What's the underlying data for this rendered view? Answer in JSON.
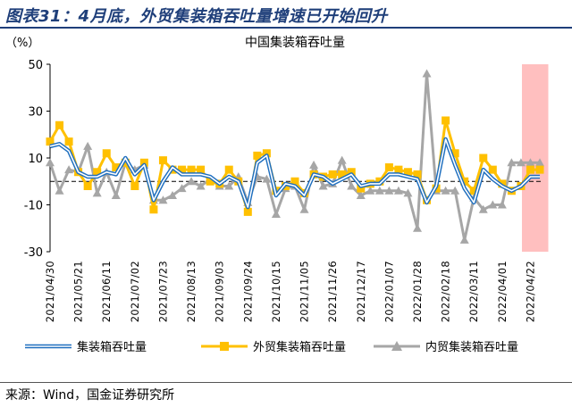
{
  "figure_title": "图表31：4月底，外贸集装箱吞吐量增速已开始回升",
  "source_note": "来源：Wind，国金证券研究所",
  "colors": {
    "total": "#1f6fbf",
    "foreign": "#ffc000",
    "domestic": "#a6a6a6",
    "highlight": "#ffaaaa",
    "title": "#1f3f7a"
  },
  "chart_data": {
    "type": "line",
    "title": "中国集装箱吞吐量",
    "unit_label": "（%）",
    "ylim": [
      -30,
      50
    ],
    "yticks": [
      -30,
      -10,
      10,
      30,
      50
    ],
    "grid": false,
    "zero_line": "dashed",
    "legend_position": "bottom",
    "highlight_region": {
      "from_index": 51,
      "to_index": 52
    },
    "x_tick_labels": [
      {
        "index": 0,
        "label": "2021/04/30"
      },
      {
        "index": 3,
        "label": "2021/05/21"
      },
      {
        "index": 6,
        "label": "2021/06/11"
      },
      {
        "index": 9,
        "label": "2021/07/02"
      },
      {
        "index": 12,
        "label": "2021/07/23"
      },
      {
        "index": 15,
        "label": "2021/08/13"
      },
      {
        "index": 18,
        "label": "2021/09/03"
      },
      {
        "index": 21,
        "label": "2021/09/24"
      },
      {
        "index": 24,
        "label": "2021/10/15"
      },
      {
        "index": 27,
        "label": "2021/11/05"
      },
      {
        "index": 30,
        "label": "2021/11/26"
      },
      {
        "index": 33,
        "label": "2021/12/17"
      },
      {
        "index": 36,
        "label": "2022/01/07"
      },
      {
        "index": 39,
        "label": "2022/01/28"
      },
      {
        "index": 42,
        "label": "2022/02/18"
      },
      {
        "index": 45,
        "label": "2022/03/11"
      },
      {
        "index": 48,
        "label": "2022/04/01"
      },
      {
        "index": 51,
        "label": "2022/04/22"
      }
    ],
    "series": [
      {
        "name": "集装箱吞吐量",
        "key": "total",
        "values": [
          15,
          16,
          13,
          4,
          2,
          2,
          4,
          3,
          10,
          3,
          7,
          -8,
          0,
          6,
          3,
          3,
          3,
          2,
          -1,
          2,
          0,
          -11,
          8,
          11,
          -6,
          -1,
          -2,
          -6,
          3,
          2,
          -1,
          1,
          3,
          -2,
          -1,
          -1,
          3,
          3,
          2,
          1,
          -9,
          -2,
          18,
          7,
          -3,
          -9,
          5,
          1,
          -2,
          -4,
          -2,
          2,
          2
        ]
      },
      {
        "name": "外贸集装箱吞吐量",
        "key": "foreign",
        "values": [
          17,
          24,
          17,
          4,
          -2,
          4,
          12,
          6,
          8,
          -2,
          8,
          -12,
          9,
          5,
          5,
          5,
          5,
          0,
          -1,
          5,
          0,
          -13,
          11,
          12,
          -4,
          -2,
          0,
          -5,
          3,
          2,
          3,
          3,
          4,
          -3,
          -1,
          0,
          6,
          5,
          4,
          3,
          -8,
          -3,
          26,
          12,
          0,
          -4,
          10,
          5,
          -1,
          -4,
          -2,
          5,
          5
        ]
      },
      {
        "name": "内贸集装箱吞吐量",
        "key": "domestic",
        "values": [
          8,
          -4,
          5,
          4,
          15,
          -5,
          4,
          -6,
          8,
          5,
          7,
          -8,
          -8,
          -6,
          -3,
          0,
          -2,
          1,
          -2,
          -2,
          2,
          -9,
          2,
          1,
          -14,
          -3,
          -2,
          -12,
          7,
          -2,
          -1,
          9,
          -2,
          -6,
          -4,
          -4,
          -4,
          -4,
          -5,
          -20,
          46,
          -4,
          -4,
          -4,
          -25,
          -7,
          -12,
          -10,
          -10,
          8,
          8,
          8,
          8
        ]
      }
    ]
  }
}
